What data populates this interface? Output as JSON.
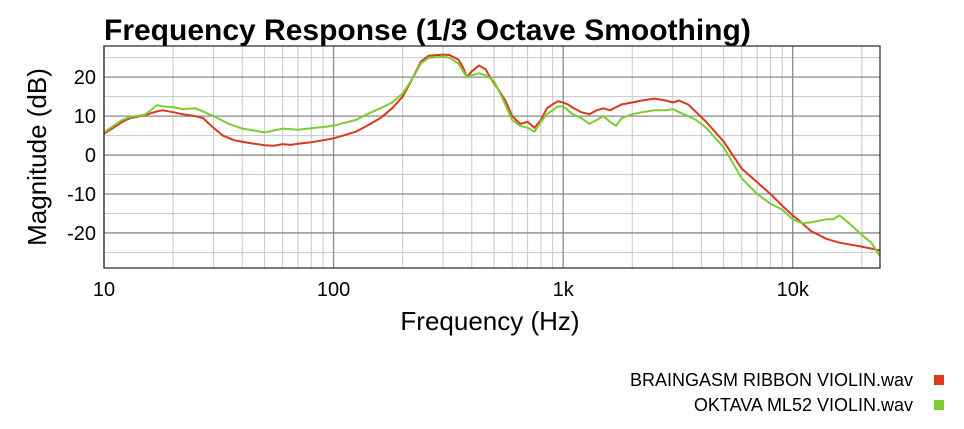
{
  "chart_data": {
    "type": "line",
    "title": "Frequency Response (1/3 Octave Smoothing)",
    "xlabel": "Frequency (Hz)",
    "ylabel": "Magnitude (dB)",
    "x_scale": "log",
    "xlim": [
      10,
      24000
    ],
    "ylim": [
      -29,
      28
    ],
    "x_ticks": [
      {
        "value": 10,
        "label": "10"
      },
      {
        "value": 100,
        "label": "100"
      },
      {
        "value": 1000,
        "label": "1k"
      },
      {
        "value": 10000,
        "label": "10k"
      }
    ],
    "y_ticks": [
      {
        "value": 20,
        "label": "20"
      },
      {
        "value": 10,
        "label": "10"
      },
      {
        "value": 0,
        "label": "0"
      },
      {
        "value": -10,
        "label": "-10"
      },
      {
        "value": -20,
        "label": "-20"
      }
    ],
    "grid": true,
    "legend_position": "bottom-right",
    "series": [
      {
        "name": "BRAINGASM RIBBON VIOLIN.wav",
        "color": "#d83a1c",
        "points": [
          [
            10,
            5.5
          ],
          [
            11,
            7
          ],
          [
            12,
            8.5
          ],
          [
            13,
            9.5
          ],
          [
            15,
            10.2
          ],
          [
            17,
            11.2
          ],
          [
            18,
            11.5
          ],
          [
            20,
            11
          ],
          [
            22,
            10.5
          ],
          [
            25,
            10
          ],
          [
            27,
            9.5
          ],
          [
            30,
            7
          ],
          [
            33,
            5
          ],
          [
            37,
            3.8
          ],
          [
            42,
            3.2
          ],
          [
            50,
            2.5
          ],
          [
            55,
            2.4
          ],
          [
            60,
            2.8
          ],
          [
            65,
            2.6
          ],
          [
            70,
            2.9
          ],
          [
            80,
            3.3
          ],
          [
            90,
            3.8
          ],
          [
            100,
            4.3
          ],
          [
            110,
            5
          ],
          [
            125,
            6
          ],
          [
            140,
            7.5
          ],
          [
            160,
            9.5
          ],
          [
            180,
            12
          ],
          [
            200,
            15
          ],
          [
            220,
            19.5
          ],
          [
            240,
            24
          ],
          [
            260,
            25.5
          ],
          [
            300,
            25.8
          ],
          [
            320,
            25.7
          ],
          [
            350,
            24.5
          ],
          [
            370,
            22
          ],
          [
            380,
            20
          ],
          [
            400,
            21.5
          ],
          [
            430,
            23
          ],
          [
            460,
            22
          ],
          [
            480,
            20
          ],
          [
            520,
            17
          ],
          [
            560,
            14
          ],
          [
            600,
            10
          ],
          [
            650,
            8
          ],
          [
            700,
            8.5
          ],
          [
            750,
            7
          ],
          [
            800,
            9
          ],
          [
            850,
            12
          ],
          [
            900,
            13
          ],
          [
            950,
            13.8
          ],
          [
            1000,
            13.5
          ],
          [
            1050,
            13
          ],
          [
            1100,
            12.2
          ],
          [
            1200,
            11
          ],
          [
            1300,
            10.5
          ],
          [
            1400,
            11.5
          ],
          [
            1500,
            12
          ],
          [
            1600,
            11.5
          ],
          [
            1800,
            13
          ],
          [
            2000,
            13.5
          ],
          [
            2200,
            14
          ],
          [
            2500,
            14.5
          ],
          [
            2800,
            14
          ],
          [
            3000,
            13.5
          ],
          [
            3200,
            14
          ],
          [
            3500,
            13
          ],
          [
            3800,
            11
          ],
          [
            4200,
            8.5
          ],
          [
            5000,
            3.5
          ],
          [
            6000,
            -3.5
          ],
          [
            7000,
            -7
          ],
          [
            8000,
            -10
          ],
          [
            9000,
            -13
          ],
          [
            10000,
            -15.5
          ],
          [
            11000,
            -17.5
          ],
          [
            12000,
            -19.5
          ],
          [
            14000,
            -21.5
          ],
          [
            16000,
            -22.5
          ],
          [
            20000,
            -23.5
          ],
          [
            24000,
            -24.5
          ]
        ]
      },
      {
        "name": "OKTAVA ML52 VIOLIN.wav",
        "color": "#7ccc34",
        "points": [
          [
            10,
            5.8
          ],
          [
            11,
            7.5
          ],
          [
            12,
            9
          ],
          [
            13,
            9.8
          ],
          [
            15,
            10.3
          ],
          [
            16,
            11.5
          ],
          [
            17,
            12.8
          ],
          [
            18,
            12.5
          ],
          [
            20,
            12.3
          ],
          [
            22,
            11.8
          ],
          [
            25,
            12
          ],
          [
            27,
            11.2
          ],
          [
            30,
            10
          ],
          [
            35,
            8
          ],
          [
            40,
            6.8
          ],
          [
            45,
            6.3
          ],
          [
            50,
            5.8
          ],
          [
            55,
            6.3
          ],
          [
            60,
            6.8
          ],
          [
            70,
            6.5
          ],
          [
            80,
            6.9
          ],
          [
            90,
            7.2
          ],
          [
            100,
            7.5
          ],
          [
            110,
            8.2
          ],
          [
            125,
            9
          ],
          [
            140,
            10.5
          ],
          [
            160,
            12
          ],
          [
            180,
            13.5
          ],
          [
            200,
            15.8
          ],
          [
            220,
            19.5
          ],
          [
            240,
            23.5
          ],
          [
            260,
            25
          ],
          [
            300,
            25.2
          ],
          [
            320,
            25
          ],
          [
            350,
            23.5
          ],
          [
            380,
            20
          ],
          [
            400,
            20.5
          ],
          [
            430,
            21
          ],
          [
            460,
            20.5
          ],
          [
            500,
            19
          ],
          [
            530,
            16
          ],
          [
            560,
            13
          ],
          [
            600,
            9
          ],
          [
            650,
            7.5
          ],
          [
            700,
            7
          ],
          [
            750,
            6
          ],
          [
            800,
            8.5
          ],
          [
            850,
            10.5
          ],
          [
            900,
            11.5
          ],
          [
            950,
            12.5
          ],
          [
            1000,
            12.5
          ],
          [
            1050,
            11.5
          ],
          [
            1100,
            10.5
          ],
          [
            1200,
            9.5
          ],
          [
            1300,
            8
          ],
          [
            1400,
            9
          ],
          [
            1500,
            10
          ],
          [
            1600,
            8.5
          ],
          [
            1700,
            7.5
          ],
          [
            1800,
            9.5
          ],
          [
            2000,
            10.5
          ],
          [
            2200,
            11
          ],
          [
            2500,
            11.5
          ],
          [
            2800,
            11.5
          ],
          [
            3000,
            11.8
          ],
          [
            3200,
            11
          ],
          [
            3500,
            10
          ],
          [
            3800,
            9
          ],
          [
            4200,
            7
          ],
          [
            5000,
            2
          ],
          [
            6000,
            -6
          ],
          [
            7000,
            -10
          ],
          [
            8000,
            -12.5
          ],
          [
            9000,
            -14
          ],
          [
            10000,
            -16.5
          ],
          [
            11000,
            -17.5
          ],
          [
            12000,
            -17.3
          ],
          [
            14000,
            -16.5
          ],
          [
            15000,
            -16.5
          ],
          [
            16000,
            -15.5
          ],
          [
            18000,
            -18
          ],
          [
            20000,
            -20.5
          ],
          [
            22000,
            -22.5
          ],
          [
            24000,
            -26
          ]
        ]
      }
    ]
  }
}
